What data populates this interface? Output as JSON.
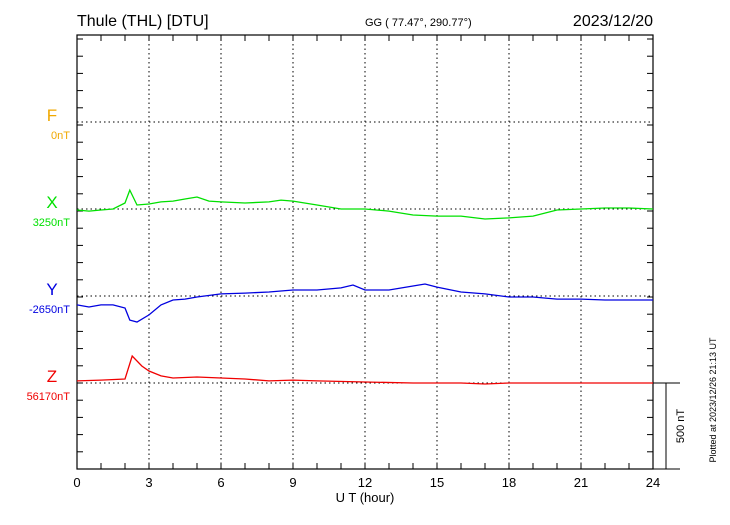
{
  "header": {
    "station": "Thule (THL)  [DTU]",
    "coords": "GG ( 77.47°, 290.77°)",
    "date": "2023/12/20"
  },
  "footer": {
    "plotted": "Plotted at 2023/12/26 21:13 UT",
    "scale_label": "500 nT"
  },
  "chart_data": {
    "type": "line",
    "xlabel": "U T (hour)",
    "xlim": [
      0,
      24
    ],
    "xticks": [
      "0",
      "3",
      "6",
      "9",
      "12",
      "15",
      "18",
      "21",
      "24"
    ],
    "grid": true,
    "scale_bar_nT": 500,
    "series": [
      {
        "name": "F",
        "baseline_label": "0nT",
        "baseline": 0,
        "color": "#f0a800",
        "x": [],
        "values": []
      },
      {
        "name": "X",
        "baseline_label": "3250nT",
        "baseline": 3250,
        "color": "#00e000",
        "x": [
          0,
          0.5,
          1,
          1.5,
          2,
          2.2,
          2.5,
          3,
          3.5,
          4,
          4.5,
          5,
          5.5,
          6,
          7,
          8,
          8.5,
          9,
          10,
          11,
          12,
          13,
          14,
          15,
          16,
          17,
          18,
          19,
          20,
          21,
          22,
          23,
          24
        ],
        "values": [
          3244,
          3238,
          3244,
          3250,
          3285,
          3360,
          3273,
          3279,
          3291,
          3296,
          3308,
          3320,
          3296,
          3291,
          3285,
          3291,
          3302,
          3296,
          3273,
          3250,
          3250,
          3238,
          3215,
          3209,
          3209,
          3192,
          3198,
          3209,
          3244,
          3250,
          3256,
          3256,
          3250
        ]
      },
      {
        "name": "Y",
        "baseline_label": "-2650nT",
        "baseline": -2650,
        "color": "#0000e0",
        "x": [
          0,
          0.5,
          1,
          1.5,
          2,
          2.2,
          2.5,
          3,
          3.5,
          4,
          4.5,
          5,
          6,
          7,
          8,
          9,
          10,
          11,
          11.5,
          12,
          13,
          14,
          14.5,
          15,
          16,
          17,
          18,
          19,
          20,
          21,
          22,
          23,
          24
        ],
        "values": [
          -2702,
          -2714,
          -2702,
          -2702,
          -2720,
          -2790,
          -2801,
          -2760,
          -2702,
          -2673,
          -2668,
          -2656,
          -2638,
          -2633,
          -2627,
          -2615,
          -2615,
          -2603,
          -2586,
          -2615,
          -2615,
          -2592,
          -2580,
          -2598,
          -2627,
          -2638,
          -2656,
          -2656,
          -2668,
          -2668,
          -2673,
          -2673,
          -2673
        ]
      },
      {
        "name": "Z",
        "baseline_label": "56170nT",
        "baseline": 56170,
        "color": "#f00000",
        "x": [
          0,
          1,
          2,
          2.3,
          2.7,
          3,
          3.5,
          4,
          5,
          6,
          7,
          8,
          9,
          10,
          12,
          14,
          16,
          17,
          18,
          20,
          22,
          24
        ],
        "values": [
          56182,
          56187,
          56193,
          56327,
          56269,
          56240,
          56211,
          56199,
          56205,
          56199,
          56193,
          56182,
          56187,
          56182,
          56176,
          56170,
          56170,
          56164,
          56170,
          56170,
          56170,
          56170
        ]
      }
    ]
  }
}
